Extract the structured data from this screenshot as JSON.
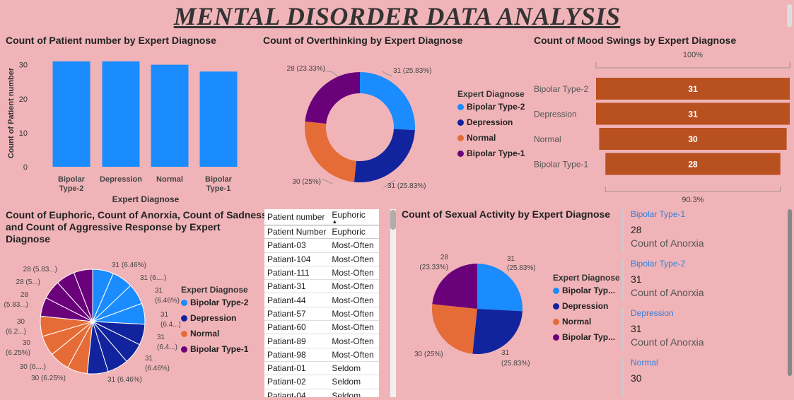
{
  "title": "MENTAL DISORDER DATA  ANALYSIS",
  "colors": {
    "bipolar2": "#1a8cff",
    "depression": "#12239e",
    "normal": "#e66c37",
    "bipolar1": "#6b007b",
    "funnel": "#b9501f"
  },
  "bar_chart": {
    "title": "Count of Patient number by Expert Diagnose",
    "ylabel": "Count of Patient number",
    "xlabel": "Expert Diagnose",
    "yticks": [
      "30",
      "20",
      "10",
      "0"
    ],
    "categories": [
      [
        "Bipolar",
        "Type-2"
      ],
      [
        "Depression"
      ],
      [
        "Normal"
      ],
      [
        "Bipolar",
        "Type-1"
      ]
    ]
  },
  "donut_chart": {
    "title": "Count of Overthinking by Expert Diagnose",
    "labels": [
      "31 (25.83%)",
      "31 (25.83%)",
      "30 (25%)",
      "28 (23.33%)"
    ],
    "legend_title": "Expert Diagnose",
    "legend": [
      "Bipolar Type-2",
      "Depression",
      "Normal",
      "Bipolar Type-1"
    ]
  },
  "funnel_chart": {
    "title": "Count of Mood Swings by Expert Diagnose",
    "top_label": "100%",
    "bottom_label": "90.3%",
    "categories": [
      "Bipolar Type-2",
      "Depression",
      "Normal",
      "Bipolar Type-1"
    ],
    "values": [
      "31",
      "31",
      "30",
      "28"
    ]
  },
  "multi_pie": {
    "title_lines": [
      "Count of Euphoric, Count of Anorxia, Count of Sadness",
      "and Count of Aggressive Response by Expert",
      "Diagnose"
    ],
    "labels": {
      "l1": "31 (6.46%)",
      "l2": "31 (6....)",
      "l3a": "31",
      "l3b": "(6.46%)",
      "l4a": "31",
      "l4b": "(6.4...)",
      "l5a": "31",
      "l5b": "(6.4...)",
      "l6a": "31",
      "l6b": "(6.46%)",
      "l7": "31 (6.46%)",
      "l8": "30 (6.25%)",
      "l9": "30 (6....)",
      "l10a": "30",
      "l10b": "(6.25%)",
      "l11a": "30",
      "l11b": "(6.2...)",
      "l12a": "28",
      "l12b": "(5.83...)",
      "l13": "28 (5...)",
      "l14": "28 (5.83...)"
    },
    "legend_title": "Expert Diagnose",
    "legend": [
      "Bipolar Type-2",
      "Depression",
      "Normal",
      "Bipolar Type-1"
    ]
  },
  "table": {
    "headers": [
      "Patient number",
      "Euphoric"
    ],
    "subheader": [
      "Patient Number",
      "Euphoric"
    ],
    "rows": [
      [
        "Patiant-03",
        "Most-Often"
      ],
      [
        "Patiant-104",
        "Most-Often"
      ],
      [
        "Patiant-111",
        "Most-Often"
      ],
      [
        "Patiant-31",
        "Most-Often"
      ],
      [
        "Patiant-44",
        "Most-Often"
      ],
      [
        "Patiant-57",
        "Most-Often"
      ],
      [
        "Patiant-60",
        "Most-Often"
      ],
      [
        "Patiant-89",
        "Most-Often"
      ],
      [
        "Patiant-98",
        "Most-Often"
      ],
      [
        "Patiant-01",
        "Seldom"
      ],
      [
        "Patiant-02",
        "Seldom"
      ],
      [
        "Patiant-04",
        "Seldom"
      ]
    ]
  },
  "pie_chart": {
    "title": "Count of Sexual Activity by Expert Diagnose",
    "labels": {
      "a1": "31",
      "a2": "(25.83%)",
      "b1": "31",
      "b2": "(25.83%)",
      "c": "30 (25%)",
      "d1": "28",
      "d2": "(23.33%)"
    },
    "legend_title": "Expert Diagnose",
    "legend": [
      "Bipolar Typ...",
      "Depression",
      "Normal",
      "Bipolar Typ..."
    ]
  },
  "cards": [
    {
      "category": "Bipolar Type-1",
      "value": "28",
      "label": "Count of Anorxia"
    },
    {
      "category": "Bipolar Type-2",
      "value": "31",
      "label": "Count of Anorxia"
    },
    {
      "category": "Depression",
      "value": "31",
      "label": "Count of Anorxia"
    },
    {
      "category": "Normal",
      "value": "30",
      "label": ""
    }
  ],
  "chart_data": [
    {
      "type": "bar",
      "title": "Count of Patient number by Expert Diagnose",
      "categories": [
        "Bipolar Type-2",
        "Depression",
        "Normal",
        "Bipolar Type-1"
      ],
      "values": [
        31,
        31,
        30,
        28
      ],
      "xlabel": "Expert Diagnose",
      "ylabel": "Count of Patient number",
      "ylim": [
        0,
        32
      ]
    },
    {
      "type": "pie",
      "title": "Count of Overthinking by Expert Diagnose",
      "categories": [
        "Bipolar Type-2",
        "Depression",
        "Normal",
        "Bipolar Type-1"
      ],
      "values": [
        31,
        31,
        30,
        28
      ]
    },
    {
      "type": "bar",
      "title": "Count of Mood Swings by Expert Diagnose",
      "categories": [
        "Bipolar Type-2",
        "Depression",
        "Normal",
        "Bipolar Type-1"
      ],
      "values": [
        31,
        31,
        30,
        28
      ]
    },
    {
      "type": "pie",
      "title": "Count of Euphoric, Count of Anorxia, Count of Sadness and Count of Aggressive Response by Expert Diagnose",
      "categories": [
        "Bipolar Type-2",
        "Depression",
        "Normal",
        "Bipolar Type-1"
      ],
      "series": [
        {
          "name": "Count of Euphoric",
          "values": [
            31,
            31,
            30,
            28
          ]
        },
        {
          "name": "Count of Anorxia",
          "values": [
            31,
            31,
            30,
            28
          ]
        },
        {
          "name": "Count of Sadness",
          "values": [
            31,
            31,
            30,
            28
          ]
        },
        {
          "name": "Count of Aggressive Response",
          "values": [
            31,
            31,
            30,
            28
          ]
        }
      ]
    },
    {
      "type": "pie",
      "title": "Count of Sexual Activity by Expert Diagnose",
      "categories": [
        "Bipolar Type-2",
        "Depression",
        "Normal",
        "Bipolar Type-1"
      ],
      "values": [
        31,
        31,
        30,
        28
      ]
    }
  ]
}
